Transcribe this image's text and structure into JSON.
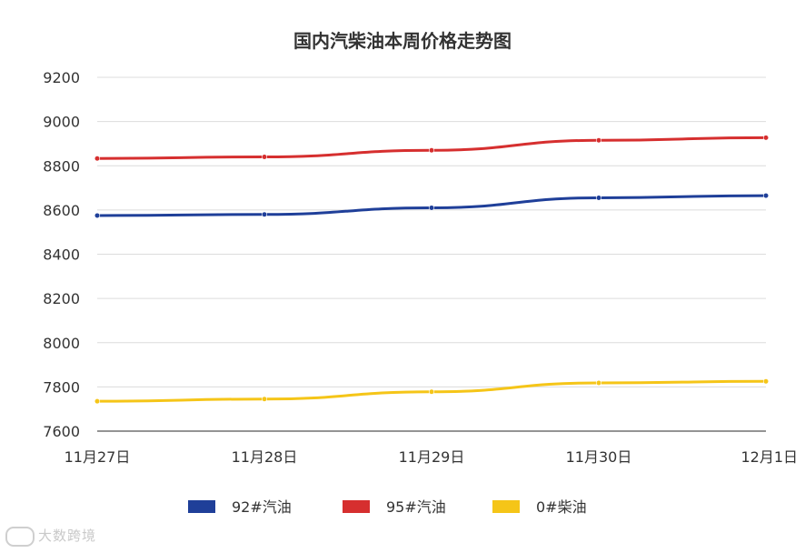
{
  "chart_data": {
    "type": "line",
    "title": "国内汽柴油本周价格走势图",
    "categories": [
      "11月27日",
      "11月28日",
      "11月29日",
      "11月30日",
      "12月1日"
    ],
    "ylim": [
      7600,
      9200
    ],
    "yticks": [
      7600,
      7800,
      8000,
      8200,
      8400,
      8600,
      8800,
      9000,
      9200
    ],
    "grid": true,
    "legend_position": "bottom",
    "series": [
      {
        "name": "92#汽油",
        "color": "#1f3f99",
        "values": [
          8575,
          8580,
          8610,
          8655,
          8665
        ]
      },
      {
        "name": "95#汽油",
        "color": "#d62f2f",
        "values": [
          8833,
          8840,
          8870,
          8915,
          8927
        ]
      },
      {
        "name": "0#柴油",
        "color": "#f5c518",
        "values": [
          7735,
          7745,
          7778,
          7818,
          7825
        ]
      }
    ]
  },
  "watermark": {
    "text": "大数跨境"
  }
}
